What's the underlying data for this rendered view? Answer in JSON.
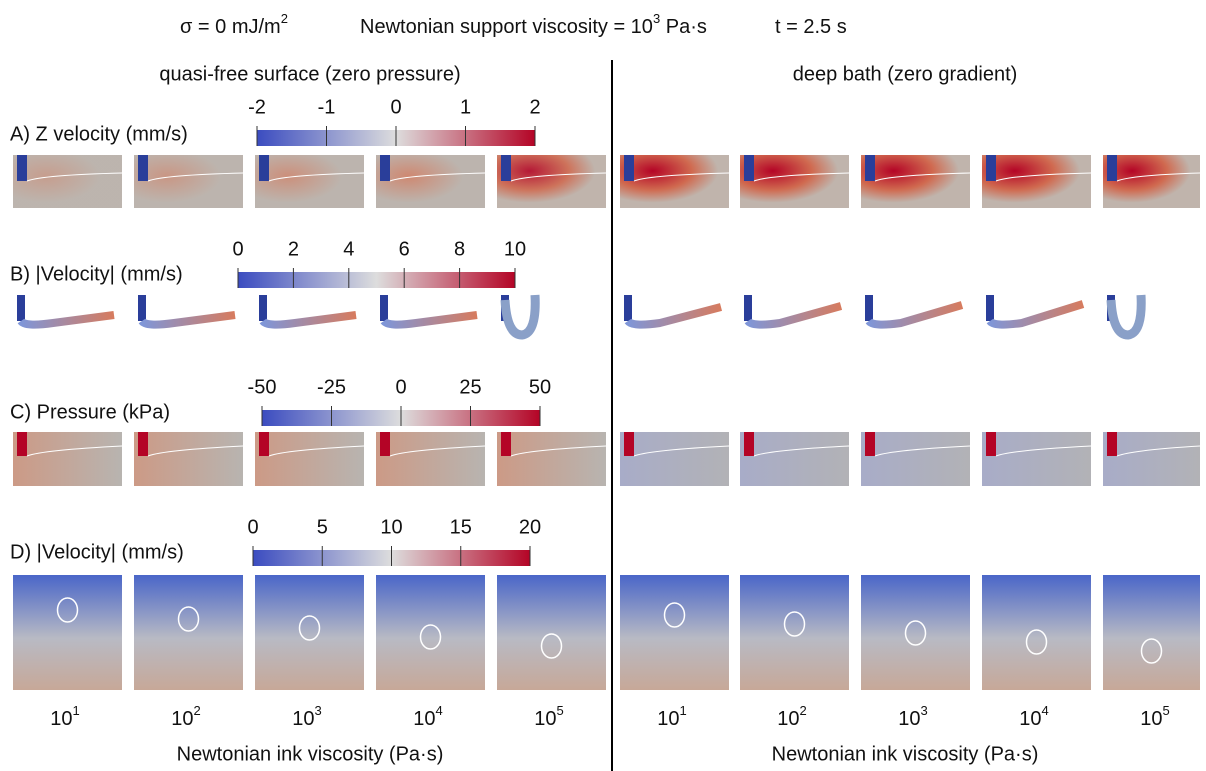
{
  "header": {
    "items": [
      {
        "text": "σ = 0 mJ/m",
        "sup": "2"
      },
      {
        "text": "Newtonian support viscosity = 10",
        "sup": "3",
        "tail": " Pa·s"
      },
      {
        "text": "t = 2.5 s"
      }
    ]
  },
  "columns": [
    {
      "title": "quasi-free surface (zero pressure)",
      "xlabel": "Newtonian ink viscosity (Pa·s)",
      "viscosities": [
        {
          "base": "10",
          "exp": "1"
        },
        {
          "base": "10",
          "exp": "2"
        },
        {
          "base": "10",
          "exp": "3"
        },
        {
          "base": "10",
          "exp": "4"
        },
        {
          "base": "10",
          "exp": "5"
        }
      ]
    },
    {
      "title": "deep bath (zero gradient)",
      "xlabel": "Newtonian ink viscosity (Pa·s)",
      "viscosities": [
        {
          "base": "10",
          "exp": "1"
        },
        {
          "base": "10",
          "exp": "2"
        },
        {
          "base": "10",
          "exp": "3"
        },
        {
          "base": "10",
          "exp": "4"
        },
        {
          "base": "10",
          "exp": "5"
        }
      ]
    }
  ],
  "rows": [
    {
      "label": "A) Z velocity (mm/s)",
      "colorbar": {
        "lim": [
          -2,
          2
        ],
        "ticks": [
          -2,
          -1,
          0,
          1,
          2
        ]
      }
    },
    {
      "label": "B) |Velocity| (mm/s)",
      "colorbar": {
        "lim": [
          0,
          10
        ],
        "ticks": [
          0,
          2,
          4,
          6,
          8,
          10
        ]
      }
    },
    {
      "label": "C) Pressure (kPa)",
      "colorbar": {
        "lim": [
          -50,
          50
        ],
        "ticks": [
          -50,
          -25,
          0,
          25,
          50
        ]
      }
    },
    {
      "label": "D) |Velocity| (mm/s)",
      "colorbar": {
        "lim": [
          0,
          20
        ],
        "ticks": [
          0,
          5,
          10,
          15,
          20
        ]
      }
    }
  ]
}
